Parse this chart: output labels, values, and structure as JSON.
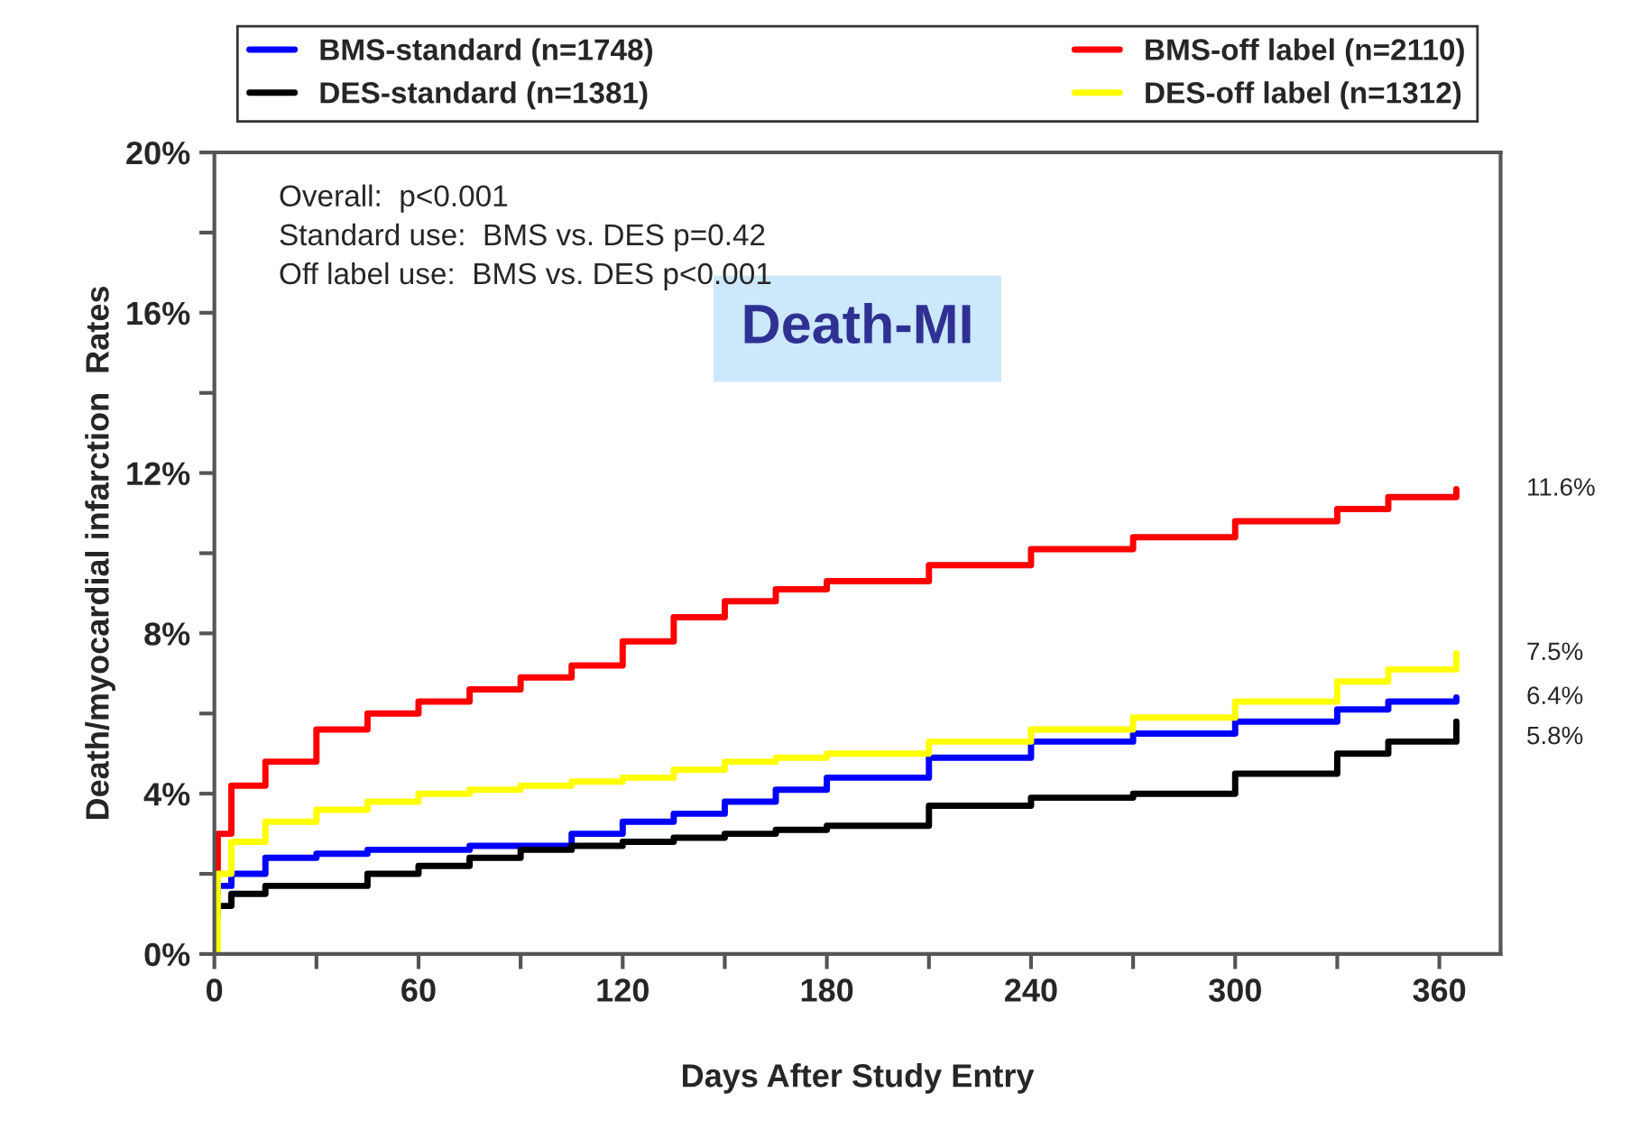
{
  "chart_data": {
    "type": "step",
    "title": "Death-MI",
    "xlabel": "Days After Study Entry",
    "ylabel": "Death/myocardial infarction  Rates",
    "x": [
      0,
      1,
      5,
      15,
      30,
      45,
      60,
      75,
      90,
      105,
      120,
      135,
      150,
      165,
      180,
      210,
      240,
      270,
      300,
      330,
      345,
      365
    ],
    "series": [
      {
        "name": "BMS-standard (n=1748)",
        "color": "#0000ff",
        "values": [
          1.5,
          1.7,
          2.0,
          2.4,
          2.5,
          2.6,
          2.6,
          2.7,
          2.7,
          3.0,
          3.3,
          3.5,
          3.8,
          4.1,
          4.4,
          4.9,
          5.3,
          5.5,
          5.8,
          6.1,
          6.3,
          6.4
        ]
      },
      {
        "name": "DES-standard (n=1381)",
        "color": "#000000",
        "values": [
          1.0,
          1.2,
          1.5,
          1.7,
          1.7,
          2.0,
          2.2,
          2.4,
          2.6,
          2.7,
          2.8,
          2.9,
          3.0,
          3.1,
          3.2,
          3.7,
          3.9,
          4.0,
          4.5,
          5.0,
          5.3,
          5.8
        ]
      },
      {
        "name": "BMS-off label (n=2110)",
        "color": "#ff0000",
        "values": [
          2.0,
          3.0,
          4.2,
          4.8,
          5.6,
          6.0,
          6.3,
          6.6,
          6.9,
          7.2,
          7.8,
          8.4,
          8.8,
          9.1,
          9.3,
          9.7,
          10.1,
          10.4,
          10.8,
          11.1,
          11.4,
          11.6
        ]
      },
      {
        "name": "DES-off label (n=1312)",
        "color": "#ffff00",
        "values": [
          0.0,
          2.0,
          2.8,
          3.3,
          3.6,
          3.8,
          4.0,
          4.1,
          4.2,
          4.3,
          4.4,
          4.6,
          4.8,
          4.9,
          5.0,
          5.3,
          5.6,
          5.9,
          6.3,
          6.8,
          7.1,
          7.5
        ]
      }
    ],
    "xlim": [
      0,
      378
    ],
    "ylim": [
      0,
      20
    ],
    "xticks": [
      0,
      {
        "value": 30,
        "label": null
      },
      60,
      {
        "value": 90,
        "label": null
      },
      120,
      {
        "value": 150,
        "label": null
      },
      180,
      {
        "value": 210,
        "label": null
      },
      240,
      {
        "value": 270,
        "label": null
      },
      300,
      {
        "value": 330,
        "label": null
      },
      360
    ],
    "yticks": [
      {
        "value": 0,
        "label": "0%"
      },
      {
        "value": 2,
        "label": null
      },
      {
        "value": 4,
        "label": "4%"
      },
      {
        "value": 6,
        "label": null
      },
      {
        "value": 8,
        "label": "8%"
      },
      {
        "value": 10,
        "label": null
      },
      {
        "value": 12,
        "label": "12%"
      },
      {
        "value": 14,
        "label": null
      },
      {
        "value": 16,
        "label": "16%"
      },
      {
        "value": 18,
        "label": null
      },
      {
        "value": 20,
        "label": "20%"
      }
    ],
    "annotations": [
      "Overall:  p<0.001\nStandard use:  BMS vs. DES p=0.42\nOff label use:  BMS vs. DES p<0.001",
      "11.6%",
      "7.5%",
      "6.4%",
      "5.8%"
    ],
    "legend": "top",
    "grid": false
  }
}
